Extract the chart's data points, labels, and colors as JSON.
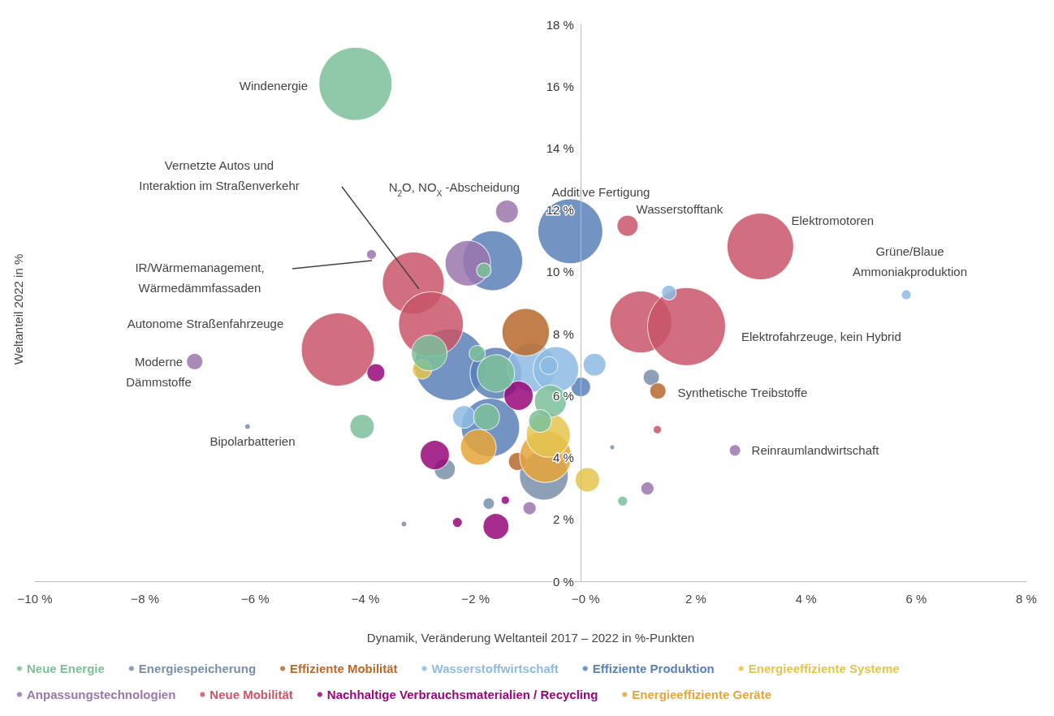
{
  "chart_data": {
    "type": "bubble",
    "xlabel": "Dynamik, Veränderung Weltanteil 2017 – 2022 in %-Punkten",
    "ylabel": "Weltanteil 2022 in %",
    "xlim": [
      -10,
      8
    ],
    "xticks": [
      {
        "value": -10,
        "label": "−10 %"
      },
      {
        "value": -8,
        "label": "−8 %"
      },
      {
        "value": -6,
        "label": "−6 %"
      },
      {
        "value": -4,
        "label": "−4 %"
      },
      {
        "value": -2,
        "label": "−2 %"
      },
      {
        "value": 0,
        "label": "−0 %"
      },
      {
        "value": 2,
        "label": "2 %"
      },
      {
        "value": 4,
        "label": "4 %"
      },
      {
        "value": 6,
        "label": "6 %"
      },
      {
        "value": 8,
        "label": "8 %"
      }
    ],
    "ylim": [
      0,
      18
    ],
    "yticks": [
      {
        "value": 0,
        "label": "0 %"
      },
      {
        "value": 2,
        "label": "2 %"
      },
      {
        "value": 4,
        "label": "4 %"
      },
      {
        "value": 6,
        "label": "6 %"
      },
      {
        "value": 8,
        "label": "8 %"
      },
      {
        "value": 10,
        "label": "10 %"
      },
      {
        "value": 12,
        "label": "12 %"
      },
      {
        "value": 14,
        "label": "14 %"
      },
      {
        "value": 16,
        "label": "16 %"
      },
      {
        "value": 18,
        "label": "18 %"
      }
    ],
    "grid": false,
    "legend": "bottom",
    "marker": "circle",
    "series": [
      {
        "name": "Neue Energie",
        "color": "#7cc09a",
        "x": [
          -4.18,
          -2.84,
          -1.97,
          -1.63,
          -1.8,
          -4.06,
          -0.64,
          -0.83,
          0.67,
          -1.85
        ],
        "values": [
          16.08,
          7.38,
          7.36,
          6.72,
          5.31,
          5.0,
          5.82,
          5.18,
          2.59,
          10.05
        ],
        "sizes": [
          0.88,
          0.21,
          0.043,
          0.23,
          0.11,
          0.098,
          0.17,
          0.085,
          0.016,
          0.035
        ]
      },
      {
        "name": "Energiespeicherung",
        "color": "#7a8fa9",
        "x": [
          1.19,
          -2.56,
          -1.76,
          -0.76,
          -6.14,
          0.48,
          -3.3
        ],
        "values": [
          6.59,
          3.62,
          2.51,
          3.41,
          5.0,
          4.33,
          1.85
        ],
        "sizes": [
          0.043,
          0.073,
          0.021,
          0.39,
          0.005,
          0.004,
          0.005
        ]
      },
      {
        "name": "Effiziente Mobilität",
        "color": "#b9692b",
        "x": [
          -1.09,
          1.31,
          -1.24
        ],
        "values": [
          8.05,
          6.15,
          3.87
        ],
        "sizes": [
          0.37,
          0.043,
          0.053
        ]
      },
      {
        "name": "Wasserstoffwirtschaft",
        "color": "#8dbbe3",
        "x": [
          -0.98,
          -0.54,
          -0.67,
          0.16,
          1.51,
          5.82,
          -2.21
        ],
        "values": [
          6.9,
          6.85,
          6.97,
          7.0,
          9.33,
          9.26,
          5.31
        ],
        "sizes": [
          0.39,
          0.34,
          0.053,
          0.085,
          0.035,
          0.016,
          0.085
        ]
      },
      {
        "name": "Effiziente Produktion",
        "color": "#5a80b8",
        "x": [
          -2.46,
          -0.28,
          -1.69,
          -1.63,
          -1.73,
          -0.09
        ],
        "values": [
          7.0,
          11.31,
          10.36,
          6.72,
          4.97,
          6.28
        ],
        "sizes": [
          0.84,
          0.69,
          0.59,
          0.44,
          0.56,
          0.0625
        ]
      },
      {
        "name": "Energieeffiziente Systeme",
        "color": "#e4c44e",
        "x": [
          -2.97,
          -0.68,
          0.03
        ],
        "values": [
          6.85,
          4.72,
          3.28
        ],
        "sizes": [
          0.0625,
          0.32,
          0.098
        ]
      },
      {
        "name": "Anpassungstechnologien",
        "color": "#9a76ad",
        "x": [
          -1.43,
          -2.14,
          -3.89,
          -7.1,
          2.71,
          1.12,
          -1.02
        ],
        "values": [
          11.95,
          10.28,
          10.56,
          7.1,
          4.23,
          3.0,
          2.36
        ],
        "sizes": [
          0.085,
          0.34,
          0.016,
          0.043,
          0.021,
          0.028,
          0.028
        ]
      },
      {
        "name": "Neue Mobilität",
        "color": "#c95569",
        "x": [
          -3.13,
          -2.81,
          -4.5,
          0.76,
          3.17,
          1.0,
          1.83,
          1.3
        ],
        "values": [
          9.64,
          8.31,
          7.49,
          11.49,
          10.82,
          8.38,
          8.23,
          4.9
        ],
        "sizes": [
          0.63,
          0.69,
          0.88,
          0.073,
          0.73,
          0.63,
          1,
          0.011
        ]
      },
      {
        "name": "Nachhaltige Verbrauchsmaterialien / Recycling",
        "color": "#96077a",
        "x": [
          -3.81,
          -1.22,
          -2.74,
          -1.63,
          -2.33,
          -1.46
        ],
        "values": [
          6.74,
          6.0,
          4.08,
          1.77,
          1.9,
          2.62
        ],
        "sizes": [
          0.053,
          0.14,
          0.14,
          0.11,
          0.016,
          0.011
        ]
      },
      {
        "name": "Energieeffiziente Geräte",
        "color": "#e6a53a",
        "x": [
          -1.95,
          -0.73
        ],
        "values": [
          4.33,
          4.03
        ],
        "sizes": [
          0.21,
          0.44
        ]
      }
    ],
    "annotations": [
      "Windenergie",
      "Vernetzte Autos und\nInteraktion im Straßenverkehr",
      {
        "text": "N$_{2}$O, NO$_{X}$ -Abscheidung",
        "x": -1.43,
        "y": 11.95
      },
      "Additive Fertigung",
      {
        "text": "Wasserstofftank",
        "x": 0.76,
        "y": 11.49
      },
      {
        "text": "Elektromotoren",
        "x": 3.17,
        "y": 10.82
      },
      {
        "text": "Grüne/Blaue\nAmmoniakproduktion",
        "x": 5.82,
        "y": 9.26
      },
      "Elektrofahrzeuge, kein Hybrid",
      {
        "text": "Synthetische Treibstoffe",
        "x": 1.31,
        "y": 6.15
      },
      {
        "text": "Reinraumlandwirtschaft",
        "x": 2.71,
        "y": 4.23
      },
      {
        "text": "Bipolarbatterien",
        "x": -6.14,
        "y": 5.0
      },
      {
        "text": "Moderne\nDämmstoffe",
        "x": -7.1,
        "y": 7.1
      },
      "Autonome Straßenfahrzeuge",
      "IR/Wärmemanagement,\nWärmedämmfassaden"
    ]
  }
}
